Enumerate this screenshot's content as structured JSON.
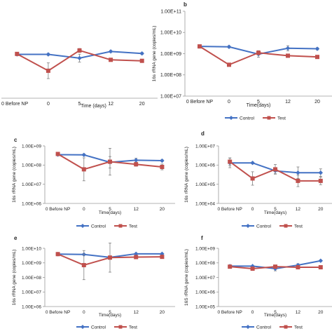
{
  "colors": {
    "control": "#4472C4",
    "test": "#C0504D",
    "axis": "#9a9a9a",
    "text": "#222222",
    "error": "#7f7f7f"
  },
  "chart_data": [
    {
      "panel": "a",
      "show_panel_label": false,
      "type": "line",
      "title": "",
      "xlabel": "Time (days)",
      "ylabel": "",
      "categories": [
        "0 Before NP",
        "0",
        "5",
        "12",
        "20"
      ],
      "yscale": "log",
      "ylim": [
        10000000,
        100000000000
      ],
      "ytick_labels": [],
      "grid": false,
      "legend": "none",
      "series": [
        {
          "name": "Control",
          "values": [
            1700000000,
            1700000000,
            1100000000,
            2400000000,
            1900000000
          ],
          "errors": [
            0.05,
            0.05,
            0.2,
            0.05,
            0.05
          ]
        },
        {
          "name": "Test",
          "values": [
            1800000000,
            250000000,
            2700000000,
            900000000,
            800000000
          ],
          "errors": [
            0.05,
            0.4,
            0.1,
            0.05,
            0.05
          ]
        }
      ]
    },
    {
      "panel": "b",
      "show_panel_label": true,
      "type": "line",
      "title": "",
      "xlabel": "Time(days)",
      "ylabel": "16s rRNA gene (copies/mL)",
      "categories": [
        "0 Before NP",
        "0",
        "5",
        "12",
        "20"
      ],
      "yscale": "log",
      "ylim": [
        10000000,
        100000000000
      ],
      "ytick_labels": [
        "1.00E+07",
        "1.00E+08",
        "1.00E+09",
        "1.00E+10",
        "1.00E+11"
      ],
      "grid": false,
      "legend": "bottom",
      "series": [
        {
          "name": "Control",
          "values": [
            2200000000,
            2100000000,
            950000000,
            1800000000,
            1700000000
          ],
          "errors": [
            0.05,
            0.05,
            0.15,
            0.12,
            0.05
          ]
        },
        {
          "name": "Test",
          "values": [
            2200000000,
            300000000,
            1100000000,
            800000000,
            700000000
          ],
          "errors": [
            0.05,
            0.05,
            0.1,
            0.05,
            0.05
          ]
        }
      ]
    },
    {
      "panel": "c",
      "show_panel_label": true,
      "type": "line",
      "title": "",
      "xlabel": "Time(days)",
      "ylabel": "16s rRNA gene (copies/mL)",
      "categories": [
        "0 Before NP",
        "0",
        "5",
        "12",
        "20"
      ],
      "yscale": "log",
      "ylim": [
        1000000,
        1000000000
      ],
      "ytick_labels": [
        "1.00E+06",
        "1.00E+07",
        "1.00E+08",
        "1.00E+09"
      ],
      "grid": false,
      "legend": "bottom",
      "series": [
        {
          "name": "Control",
          "values": [
            350000000,
            340000000,
            140000000,
            180000000,
            170000000
          ],
          "errors": [
            0.05,
            0.05,
            0.3,
            0.1,
            0.05
          ]
        },
        {
          "name": "Test",
          "values": [
            380000000,
            60000000,
            150000000,
            110000000,
            80000000
          ],
          "errors": [
            0.05,
            0.6,
            0.7,
            0.1,
            0.15
          ]
        }
      ]
    },
    {
      "panel": "d",
      "show_panel_label": true,
      "type": "line",
      "title": "",
      "xlabel": "Time(days)",
      "ylabel": "16s rRNA gene (copies/mL)",
      "categories": [
        "0 Before NP",
        "0",
        "5",
        "12",
        "20"
      ],
      "yscale": "log",
      "ylim": [
        10000,
        10000000
      ],
      "ytick_labels": [
        "1.00E+04",
        "1.00E+05",
        "1.00E+06",
        "1.00E+07"
      ],
      "grid": false,
      "legend": "bottom",
      "series": [
        {
          "name": "Control",
          "values": [
            1300000,
            1300000,
            500000,
            400000,
            400000
          ],
          "errors": [
            0.25,
            0.05,
            0.15,
            0.3,
            0.2
          ]
        },
        {
          "name": "Test",
          "values": [
            1500000,
            200000,
            600000,
            150000,
            150000
          ],
          "errors": [
            0.2,
            0.35,
            0.25,
            0.3,
            0.2
          ]
        }
      ]
    },
    {
      "panel": "e",
      "show_panel_label": true,
      "type": "line",
      "title": "",
      "xlabel": "Time(days)",
      "ylabel": "16s rRNA gene (copies/mL)",
      "categories": [
        "0 Before NP",
        "0",
        "5",
        "12",
        "20"
      ],
      "yscale": "log",
      "ylim": [
        1000000,
        10000000000
      ],
      "ytick_labels": [
        "1.00E+06",
        "1.00E+07",
        "1.00E+08",
        "1.00E+09",
        "1.00E+10"
      ],
      "grid": false,
      "legend": "bottom",
      "series": [
        {
          "name": "Control",
          "values": [
            4000000000,
            3800000000,
            2400000000,
            4200000000,
            4200000000
          ],
          "errors": [
            0.05,
            0.05,
            0.1,
            0.05,
            0.05
          ]
        },
        {
          "name": "Test",
          "values": [
            4000000000,
            700000000,
            2300000000,
            2500000000,
            2600000000
          ],
          "errors": [
            0.05,
            1.0,
            1.0,
            0.1,
            0.1
          ]
        }
      ]
    },
    {
      "panel": "f",
      "show_panel_label": true,
      "type": "line",
      "title": "",
      "xlabel": "Time(days)",
      "ylabel": "16S rRNA gene (copies/mL)",
      "categories": [
        "0 Before NP",
        "0",
        "5",
        "12",
        "20"
      ],
      "yscale": "log",
      "ylim": [
        100000,
        1000000000
      ],
      "ytick_labels": [
        "1.00E+05",
        "1.00E+06",
        "1.00E+07",
        "1.00E+08",
        "1.00E+09"
      ],
      "grid": false,
      "legend": "bottom",
      "series": [
        {
          "name": "Control",
          "values": [
            60000000,
            60000000,
            40000000,
            70000000,
            140000000
          ],
          "errors": [
            0.05,
            0.05,
            0.15,
            0.1,
            0.05
          ]
        },
        {
          "name": "Test",
          "values": [
            55000000,
            40000000,
            55000000,
            50000000,
            50000000
          ],
          "errors": [
            0.05,
            0.1,
            0.1,
            0.05,
            0.05
          ]
        }
      ]
    }
  ]
}
